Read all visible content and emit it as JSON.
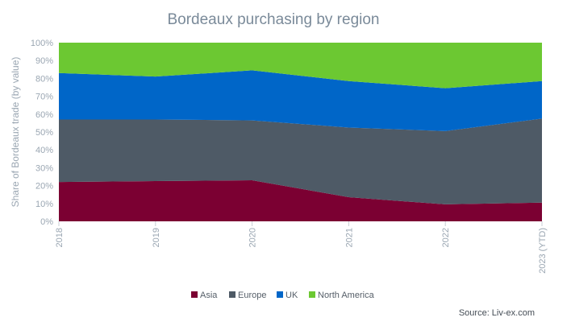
{
  "chart_data": {
    "type": "area",
    "stacked": true,
    "percent": true,
    "title": "Bordeaux purchasing by region",
    "ylabel": "Share of Bordeaux trade (by value)",
    "xlabel": "",
    "ylim": [
      0,
      100
    ],
    "y_ticks": [
      "0%",
      "10%",
      "20%",
      "30%",
      "40%",
      "50%",
      "60%",
      "70%",
      "80%",
      "90%",
      "100%"
    ],
    "categories": [
      "2018",
      "2019",
      "2020",
      "2021",
      "2022",
      "2023 (YTD)"
    ],
    "series": [
      {
        "name": "Asia",
        "color": "#7b0032",
        "values": [
          22,
          22.5,
          23,
          13.5,
          9.5,
          10.5
        ]
      },
      {
        "name": "Europe",
        "color": "#4e5a66",
        "values": [
          35,
          34.5,
          33.5,
          39,
          41,
          47
        ]
      },
      {
        "name": "UK",
        "color": "#0066c8",
        "values": [
          26,
          24,
          28,
          26,
          24,
          21
        ]
      },
      {
        "name": "North America",
        "color": "#6cc832",
        "values": [
          17,
          19,
          15.5,
          21.5,
          25.5,
          21.5
        ]
      }
    ],
    "grid": false,
    "legend_position": "bottom-center",
    "source": "Source: Liv-ex.com"
  }
}
